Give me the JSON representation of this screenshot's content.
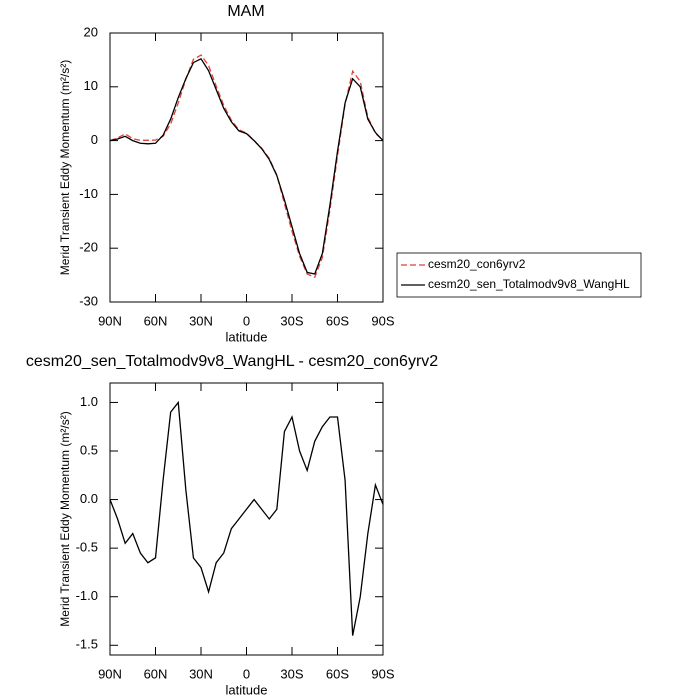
{
  "chart_data": [
    {
      "type": "line",
      "title": "MAM",
      "x_label": "latitude",
      "y_label": "Merid Transient Eddy Momentum (m²/s²)",
      "x": [
        90,
        85,
        80,
        75,
        70,
        65,
        60,
        55,
        50,
        45,
        40,
        35,
        30,
        25,
        20,
        15,
        10,
        5,
        0,
        -5,
        -10,
        -15,
        -20,
        -25,
        -30,
        -35,
        -40,
        -45,
        -50,
        -55,
        -60,
        -65,
        -70,
        -75,
        -80,
        -85,
        -90
      ],
      "series": [
        {
          "name": "cesm20_con6yrv2",
          "color": "#e0403a",
          "dash": true,
          "values": [
            0,
            0.5,
            1.25,
            0.35,
            0.05,
            0.05,
            0.1,
            0.8,
            3.1,
            7,
            11.4,
            15.1,
            15.9,
            13.95,
            10.15,
            6.55,
            3.8,
            2.0,
            1.4,
            0,
            -1.4,
            -3.3,
            -6.4,
            -11.7,
            -16.85,
            -21.5,
            -24.8,
            -25.4,
            -21.75,
            -12.85,
            -2.85,
            6.8,
            12.9,
            11.0,
            4.35,
            1.35,
            0.05
          ]
        },
        {
          "name": "cesm20_sen_Totalmodv9v8_WangHL",
          "color": "#000000",
          "dash": false,
          "values": [
            0,
            0.3,
            0.8,
            0,
            -0.5,
            -0.6,
            -0.5,
            1,
            4,
            8,
            11.5,
            14.5,
            15.2,
            13,
            9.5,
            6,
            3.5,
            1.8,
            1.3,
            0,
            -1.5,
            -3.5,
            -6.5,
            -11,
            -16,
            -21,
            -24.5,
            -24.8,
            -21,
            -12,
            -2,
            7,
            11.5,
            10,
            4,
            1.5,
            0
          ]
        }
      ],
      "xlim": [
        90,
        -90
      ],
      "xticks": [
        {
          "value": 90,
          "label": "90N"
        },
        {
          "value": 60,
          "label": "60N"
        },
        {
          "value": 30,
          "label": "30N"
        },
        0,
        {
          "value": -30,
          "label": "30S"
        },
        {
          "value": -60,
          "label": "60S"
        },
        {
          "value": -90,
          "label": "90S"
        }
      ],
      "ylim": [
        -30,
        20
      ],
      "yticks": [
        20,
        10,
        0,
        -10,
        -20,
        -30
      ],
      "legend": "right"
    },
    {
      "type": "line",
      "title": "cesm20_sen_Totalmodv9v8_WangHL - cesm20_con6yrv2",
      "x_label": "latitude",
      "y_label": "Merid Transient Eddy Momentum (m²/s²)",
      "x": [
        90,
        85,
        80,
        75,
        70,
        65,
        60,
        55,
        50,
        45,
        40,
        35,
        30,
        25,
        20,
        15,
        10,
        5,
        0,
        -5,
        -10,
        -15,
        -20,
        -25,
        -30,
        -35,
        -40,
        -45,
        -50,
        -55,
        -60,
        -65,
        -70,
        -75,
        -80,
        -85,
        -90
      ],
      "series": [
        {
          "color": "#000000",
          "dash": false,
          "values": [
            0,
            -0.2,
            -0.45,
            -0.35,
            -0.55,
            -0.65,
            -0.6,
            0.2,
            0.9,
            1.0,
            0.1,
            -0.6,
            -0.7,
            -0.95,
            -0.65,
            -0.55,
            -0.3,
            -0.2,
            -0.1,
            0,
            -0.1,
            -0.2,
            -0.1,
            0.7,
            0.85,
            0.5,
            0.3,
            0.6,
            0.75,
            0.85,
            0.85,
            0.2,
            -1.4,
            -1.0,
            -0.35,
            0.15,
            -0.05
          ]
        }
      ],
      "xlim": [
        90,
        -90
      ],
      "xticks": [
        {
          "value": 90,
          "label": "90N"
        },
        {
          "value": 60,
          "label": "60N"
        },
        {
          "value": 30,
          "label": "30N"
        },
        0,
        {
          "value": -30,
          "label": "30S"
        },
        {
          "value": -60,
          "label": "60S"
        },
        {
          "value": -90,
          "label": "90S"
        }
      ],
      "ylim": [
        -1.6,
        1.2
      ],
      "yticks": [
        {
          "value": 1,
          "label": "1.0"
        },
        0.5,
        {
          "value": 0,
          "label": "0.0"
        },
        -0.5,
        {
          "value": -1,
          "label": "-1.0"
        },
        -1.5
      ]
    }
  ]
}
